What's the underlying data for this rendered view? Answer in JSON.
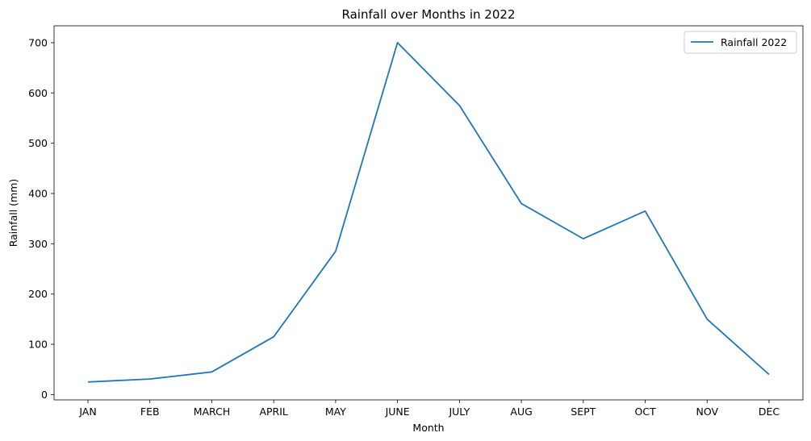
{
  "chart_data": {
    "type": "line",
    "title": "Rainfall over Months in 2022",
    "xlabel": "Month",
    "ylabel": "Rainfall (mm)",
    "categories": [
      "JAN",
      "FEB",
      "MARCH",
      "APRIL",
      "MAY",
      "JUNE",
      "JULY",
      "AUG",
      "SEPT",
      "OCT",
      "NOV",
      "DEC"
    ],
    "series": [
      {
        "name": "Rainfall 2022",
        "color": "#1f77b4",
        "values": [
          25,
          31,
          45,
          115,
          285,
          700,
          575,
          380,
          310,
          365,
          150,
          40
        ]
      }
    ],
    "yticks": [
      0,
      100,
      200,
      300,
      400,
      500,
      600,
      700
    ],
    "ylim": [
      -10.6,
      733.6
    ],
    "grid": false,
    "legend_position": "top-right"
  }
}
